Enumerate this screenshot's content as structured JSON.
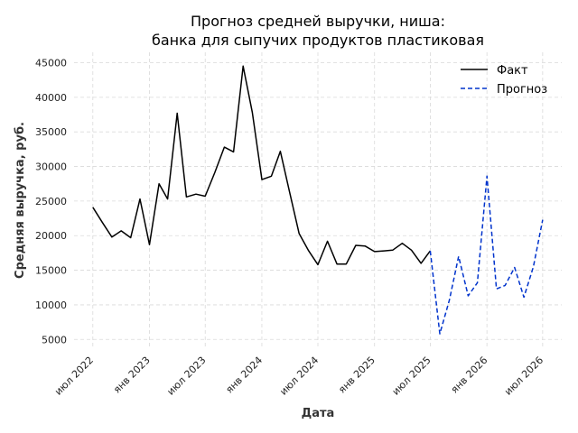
{
  "chart_data": {
    "type": "line",
    "title_line1": "Прогноз средней выручки, ниша:",
    "title_line2": "банка для сыпучих продуктов пластиковая",
    "xlabel": "Дата",
    "ylabel": "Средняя выручка, руб.",
    "ylim": [
      3600,
      46500
    ],
    "y_ticks": [
      5000,
      10000,
      15000,
      20000,
      25000,
      30000,
      35000,
      40000,
      45000
    ],
    "x_ticks": [
      {
        "date": "2022-07-01",
        "label": "июл 2022"
      },
      {
        "date": "2023-01-01",
        "label": "янв 2023"
      },
      {
        "date": "2023-07-01",
        "label": "июл 2023"
      },
      {
        "date": "2024-01-01",
        "label": "янв 2024"
      },
      {
        "date": "2024-07-01",
        "label": "июл 2024"
      },
      {
        "date": "2025-01-01",
        "label": "янв 2025"
      },
      {
        "date": "2025-07-01",
        "label": "июл 2025"
      },
      {
        "date": "2026-01-01",
        "label": "янв 2026"
      },
      {
        "date": "2026-07-01",
        "label": "июл 2026"
      }
    ],
    "xlim": [
      "2022-05-01",
      "2026-09-01"
    ],
    "grid": true,
    "legend_position": "top-right",
    "series": [
      {
        "name": "Факт",
        "color": "#000000",
        "style": "solid",
        "x": [
          "2022-07-01",
          "2022-08-01",
          "2022-09-01",
          "2022-10-01",
          "2022-11-01",
          "2022-12-01",
          "2023-01-01",
          "2023-02-01",
          "2023-03-01",
          "2023-04-01",
          "2023-05-01",
          "2023-06-01",
          "2023-07-01",
          "2023-08-01",
          "2023-09-01",
          "2023-10-01",
          "2023-11-01",
          "2023-12-01",
          "2024-01-01",
          "2024-02-01",
          "2024-03-01",
          "2024-04-01",
          "2024-05-01",
          "2024-06-01",
          "2024-07-01",
          "2024-08-01",
          "2024-09-01",
          "2024-10-01",
          "2024-11-01",
          "2024-12-01",
          "2025-01-01",
          "2025-02-01",
          "2025-03-01",
          "2025-04-01",
          "2025-05-01",
          "2025-06-01",
          "2025-07-01"
        ],
        "y": [
          24100,
          21900,
          19800,
          20700,
          19700,
          25300,
          18700,
          27500,
          25300,
          37700,
          25600,
          26000,
          25700,
          29100,
          32800,
          32100,
          44500,
          37800,
          28100,
          28600,
          32200,
          26100,
          20300,
          17800,
          15800,
          19200,
          15900,
          15900,
          18600,
          18500,
          17700,
          17800,
          17900,
          18900,
          17900,
          16000,
          17800
        ]
      },
      {
        "name": "Прогноз",
        "color": "#0033cc",
        "style": "dashed",
        "x": [
          "2025-07-01",
          "2025-08-01",
          "2025-09-01",
          "2025-10-01",
          "2025-11-01",
          "2025-12-01",
          "2026-01-01",
          "2026-02-01",
          "2026-03-01",
          "2026-04-01",
          "2026-05-01",
          "2026-06-01",
          "2026-07-01"
        ],
        "y": [
          17800,
          5800,
          10700,
          17000,
          11300,
          13200,
          28600,
          12300,
          12800,
          15400,
          11100,
          15500,
          22300
        ]
      }
    ]
  }
}
